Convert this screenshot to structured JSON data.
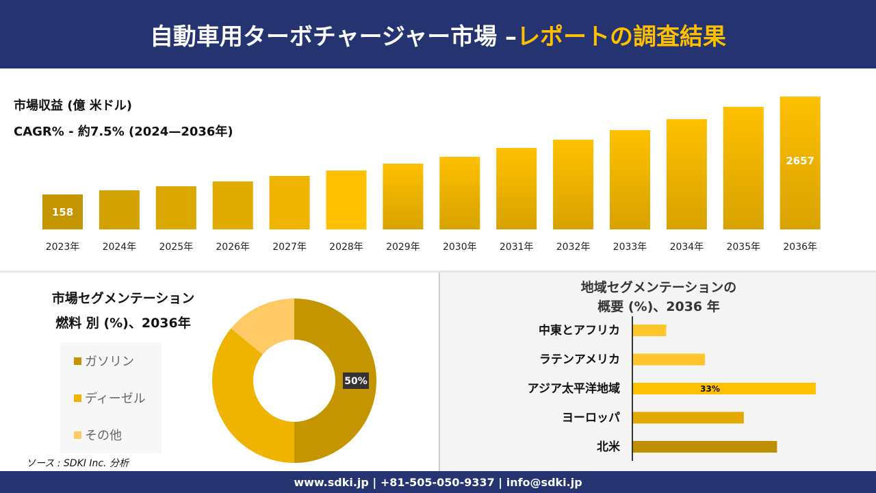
{
  "header": {
    "title_main": "自動車用ターボチャージャー市場 –",
    "title_accent": "レポートの調査結果"
  },
  "revenue": {
    "title": "市場収益 (億 米ドル)",
    "cagr": "CAGR% - 約7.5% (2024—2036年)"
  },
  "segment": {
    "title_line1": "市場セグメンテーション",
    "title_line2": "燃料 別 (%)、2036年",
    "source": "ソース : SDKI Inc. 分析"
  },
  "region": {
    "title_line1": "地域セグメンテーションの",
    "title_line2": "概要 (%)、2036 年"
  },
  "footer": {
    "text": "www.sdki.jp | +81-505-050-9337 | info@sdki.jp"
  },
  "colors": {
    "header_bg": "#253470",
    "accent": "#ffc000",
    "dark_gold": "#c59500",
    "gold": "#e8b000",
    "light_gold": "#ffc966"
  },
  "chart_data": [
    {
      "type": "bar",
      "title": "市場収益 (億 米ドル)",
      "categories": [
        "2023年",
        "2024年",
        "2025年",
        "2026年",
        "2027年",
        "2028年",
        "2029年",
        "2030年",
        "2031年",
        "2032年",
        "2033年",
        "2034年",
        "2035年",
        "2036年"
      ],
      "values": [
        158,
        263,
        368,
        490,
        630,
        770,
        944,
        1119,
        1346,
        1556,
        1801,
        2080,
        2395,
        2657
      ],
      "data_labels": {
        "0": "158",
        "13": "2657"
      },
      "grid": false
    },
    {
      "type": "pie",
      "subtype": "donut",
      "title": "燃料 別 (%)、2036年",
      "categories": [
        "ガソリン",
        "ディーゼル",
        "その他"
      ],
      "values": [
        50,
        36,
        14
      ],
      "colors": [
        "#c59500",
        "#eeb400",
        "#ffc966"
      ],
      "data_labels": {
        "0": "50%"
      },
      "legend": "left"
    },
    {
      "type": "bar",
      "orientation": "horizontal",
      "title": "地域セグメンテーションの概要 (%)、2036 年",
      "categories": [
        "中東とアフリカ",
        "ラテンアメリカ",
        "アジア太平洋地域",
        "ヨーロッパ",
        "北米"
      ],
      "values": [
        6,
        13,
        33,
        20,
        26
      ],
      "colors": [
        "#ffc72c",
        "#ffc72c",
        "#ffc000",
        "#e2aa00",
        "#bf8f00"
      ],
      "data_labels": {
        "2": "33%"
      }
    }
  ]
}
